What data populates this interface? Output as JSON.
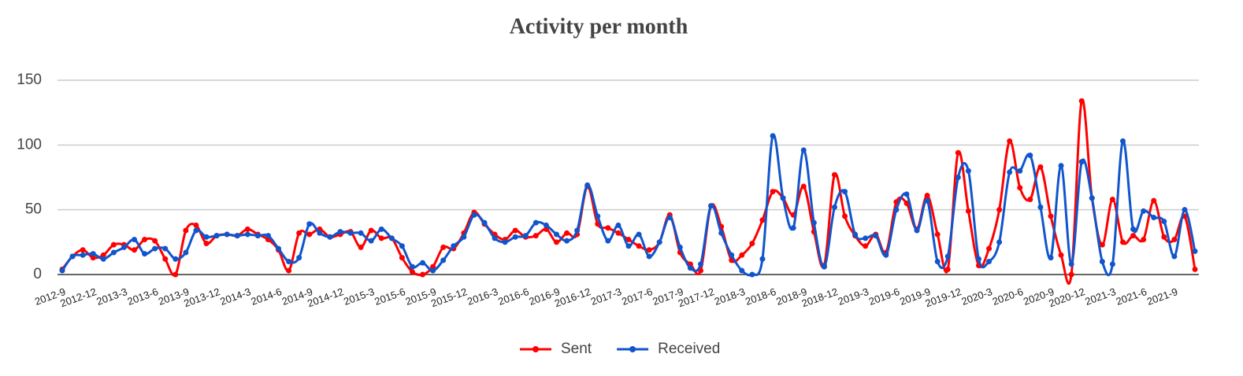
{
  "chart_data": {
    "type": "line",
    "title": "Activity per month",
    "categories": [
      "2012-9",
      null,
      null,
      "2012-12",
      null,
      null,
      "2013-3",
      null,
      null,
      "2013-6",
      null,
      null,
      "2013-9",
      null,
      null,
      "2013-12",
      null,
      null,
      "2014-3",
      null,
      null,
      "2014-6",
      null,
      null,
      "2014-9",
      null,
      null,
      "2014-12",
      null,
      null,
      "2015-3",
      null,
      null,
      "2015-6",
      null,
      null,
      "2015-9",
      null,
      null,
      "2015-12",
      null,
      null,
      "2016-3",
      null,
      null,
      "2016-6",
      null,
      null,
      "2016-9",
      null,
      null,
      "2016-12",
      null,
      null,
      "2017-3",
      null,
      null,
      "2017-6",
      null,
      null,
      "2017-9",
      null,
      null,
      "2017-12",
      null,
      null,
      "2018-3",
      null,
      null,
      "2018-6",
      null,
      null,
      "2018-9",
      null,
      null,
      "2018-12",
      null,
      null,
      "2019-3",
      null,
      null,
      "2019-6",
      null,
      null,
      "2019-9",
      null,
      null,
      "2019-12",
      null,
      null,
      "2020-3",
      null,
      null,
      "2020-6",
      null,
      null,
      "2020-9",
      null,
      null,
      "2020-12",
      null,
      null,
      "2021-3",
      null,
      null,
      "2021-6",
      null,
      null,
      "2021-9",
      null,
      null
    ],
    "series": [
      {
        "name": "Sent",
        "color": "#ff0000",
        "values": [
          4,
          14,
          19,
          13,
          15,
          23,
          23,
          19,
          27,
          26,
          12,
          0,
          34,
          38,
          24,
          30,
          31,
          30,
          35,
          31,
          27,
          19,
          3,
          32,
          31,
          35,
          29,
          31,
          33,
          21,
          34,
          28,
          28,
          13,
          2,
          0,
          6,
          21,
          20,
          32,
          48,
          39,
          31,
          27,
          34,
          29,
          30,
          35,
          25,
          32,
          31,
          68,
          39,
          36,
          32,
          27,
          22,
          19,
          25,
          46,
          17,
          8,
          3,
          53,
          37,
          11,
          15,
          24,
          42,
          64,
          59,
          46,
          68,
          33,
          7,
          77,
          45,
          30,
          22,
          31,
          17,
          56,
          55,
          35,
          61,
          31,
          4,
          94,
          49,
          7,
          20,
          50,
          103,
          67,
          58,
          83,
          45,
          15,
          0,
          134,
          59,
          23,
          58,
          25,
          30,
          27,
          57,
          29,
          27,
          45,
          4
        ]
      },
      {
        "name": "Received",
        "color": "#1155cc",
        "values": [
          3,
          14,
          15,
          16,
          12,
          17,
          21,
          27,
          16,
          20,
          20,
          12,
          17,
          34,
          29,
          30,
          31,
          30,
          31,
          30,
          30,
          20,
          10,
          13,
          39,
          32,
          29,
          33,
          32,
          32,
          26,
          35,
          28,
          22,
          6,
          9,
          3,
          11,
          22,
          29,
          46,
          40,
          28,
          25,
          29,
          30,
          40,
          38,
          31,
          26,
          34,
          69,
          45,
          26,
          38,
          22,
          31,
          14,
          25,
          44,
          21,
          5,
          8,
          53,
          32,
          15,
          3,
          0,
          12,
          107,
          59,
          36,
          96,
          40,
          6,
          52,
          64,
          31,
          28,
          30,
          15,
          50,
          62,
          34,
          57,
          10,
          14,
          75,
          80,
          12,
          10,
          25,
          79,
          80,
          92,
          52,
          13,
          84,
          8,
          87,
          59,
          10,
          8,
          103,
          35,
          49,
          44,
          41,
          14,
          50,
          18
        ]
      }
    ],
    "ylim": [
      0,
      150
    ],
    "yticks": [
      0,
      50,
      100,
      150
    ],
    "grid": true,
    "legend": "bottom"
  }
}
